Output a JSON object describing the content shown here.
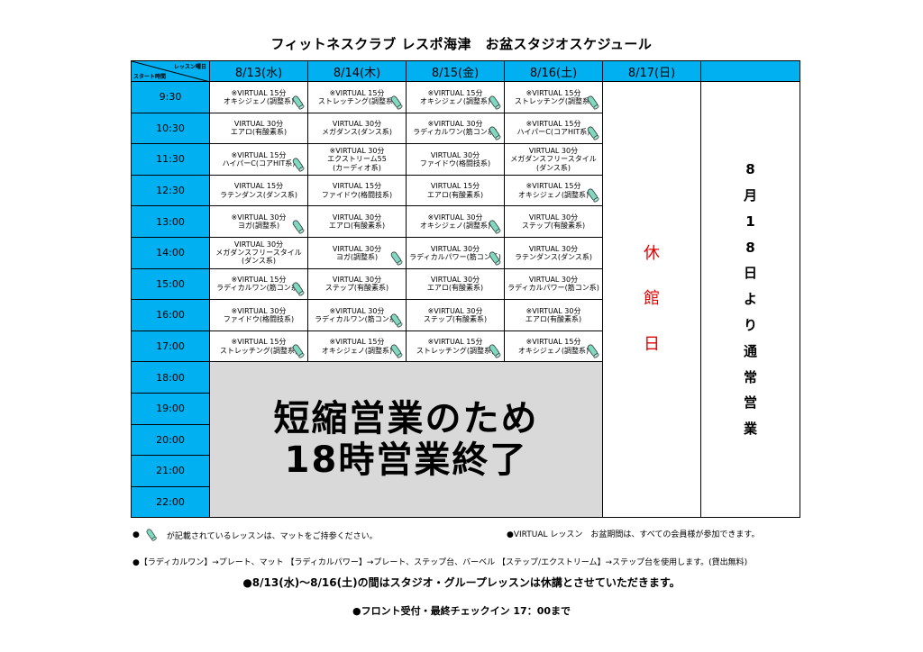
{
  "title": "フィットネスクラブ レスポ海津　お盆スタジオスケジュール",
  "corner": {
    "top_right": "レッスン曜日",
    "bottom_left": "スタート時間"
  },
  "days": [
    "8/13(水)",
    "8/14(木)",
    "8/15(金)",
    "8/16(土)",
    "8/17(日)"
  ],
  "times": [
    "9:30",
    "10:30",
    "11:30",
    "12:30",
    "13:00",
    "14:00",
    "15:00",
    "16:00",
    "17:00",
    "18:00",
    "19:00",
    "20:00",
    "21:00",
    "22:00"
  ],
  "lessons": [
    [
      {
        "l1": "※VIRTUAL 15分",
        "l2": "オキシジェノ(調整系)",
        "mat": true
      },
      {
        "l1": "※VIRTUAL 15分",
        "l2": "ストレッチング(調整系)",
        "mat": true
      },
      {
        "l1": "※VIRTUAL 15分",
        "l2": "オキシジェノ(調整系)",
        "mat": true
      },
      {
        "l1": "※VIRTUAL 15分",
        "l2": "ストレッチング(調整系)",
        "mat": true
      }
    ],
    [
      {
        "l1": "VIRTUAL 30分",
        "l2": "エアロ(有酸素系)",
        "mat": false
      },
      {
        "l1": "VIRTUAL 30分",
        "l2": "メガダンス(ダンス系)",
        "mat": false
      },
      {
        "l1": "※VIRTUAL 30分",
        "l2": "ラディカルワン(筋コン系)",
        "mat": true
      },
      {
        "l1": "※VIRTUAL 15分",
        "l2": "ハイパーC(コアHIT系)",
        "mat": true
      }
    ],
    [
      {
        "l1": "※VIRTUAL 15分",
        "l2": "ハイパーC(コアHIT系)",
        "mat": true
      },
      {
        "l1": "※VIRTUAL 30分",
        "l2": "エクストリーム55",
        "l3": "(カーディオ系)",
        "mat": false
      },
      {
        "l1": "VIRTUAL 30分",
        "l2": "ファイドウ(格闘技系)",
        "mat": false
      },
      {
        "l1": "VIRTUAL 30分",
        "l2": "メガダンスフリースタイル",
        "l3": "(ダンス系)",
        "mat": false
      }
    ],
    [
      {
        "l1": "VIRTUAL 15分",
        "l2": "ラテンダンス(ダンス系)",
        "mat": false
      },
      {
        "l1": "VIRTUAL 15分",
        "l2": "ファイドウ(格闘技系)",
        "mat": false
      },
      {
        "l1": "VIRTUAL 15分",
        "l2": "エアロ(有酸素系)",
        "mat": false
      },
      {
        "l1": "※VIRTUAL 15分",
        "l2": "オキシジェノ(調整系)",
        "mat": true
      }
    ],
    [
      {
        "l1": "※VIRTUAL 30分",
        "l2": "ヨガ(調整系)",
        "mat": true
      },
      {
        "l1": "VIRTUAL 30分",
        "l2": "エアロ(有酸素系)",
        "mat": false
      },
      {
        "l1": "※VIRTUAL 30分",
        "l2": "オキシジェノ(調整系)",
        "mat": true
      },
      {
        "l1": "VIRTUAL 30分",
        "l2": "ステップ(有酸素系)",
        "mat": false
      }
    ],
    [
      {
        "l1": "VIRTUAL 30分",
        "l2": "メガダンスフリースタイル",
        "l3": "(ダンス系)",
        "mat": false
      },
      {
        "l1": "VIRTUAL 30分",
        "l2": "ヨガ(調整系)",
        "mat": true
      },
      {
        "l1": "VIRTUAL 30分",
        "l2": "ラディカルパワー(筋コン系)",
        "mat": true
      },
      {
        "l1": "VIRTUAL 30分",
        "l2": "ラテンダンス(ダンス系)",
        "mat": false
      }
    ],
    [
      {
        "l1": "※VIRTUAL 15分",
        "l2": "ラディカルワン(筋コン系)",
        "mat": true
      },
      {
        "l1": "VIRTUAL 30分",
        "l2": "ステップ(有酸素系)",
        "mat": false
      },
      {
        "l1": "VIRTUAL 30分",
        "l2": "エアロ(有酸素系)",
        "mat": false
      },
      {
        "l1": "VIRTUAL 30分",
        "l2": "ラディカルパワー(筋コン系)",
        "mat": false
      }
    ],
    [
      {
        "l1": "※VIRTUAL 30分",
        "l2": "ファイドウ(格闘技系)",
        "mat": false
      },
      {
        "l1": "※VIRTUAL 30分",
        "l2": "ラディカルワン(筋コン系)",
        "mat": true
      },
      {
        "l1": "※VIRTUAL 30分",
        "l2": "ステップ(有酸素系)",
        "mat": false
      },
      {
        "l1": "※VIRTUAL 30分",
        "l2": "エアロ(有酸素系)",
        "mat": false
      }
    ],
    [
      {
        "l1": "※VIRTUAL 15分",
        "l2": "ストレッチング(調整系)",
        "mat": true
      },
      {
        "l1": "※VIRTUAL 15分",
        "l2": "オキシジェノ(調整系)",
        "mat": true
      },
      {
        "l1": "※VIRTUAL 15分",
        "l2": "ストレッチング(調整系)",
        "mat": true
      },
      {
        "l1": "※VIRTUAL 15分",
        "l2": "オキシジェノ(調整系)",
        "mat": true
      }
    ]
  ],
  "short_hours": {
    "line1": "短縮営業のため",
    "line2": "18時営業終了"
  },
  "closed_chars": [
    "休",
    "館",
    "日"
  ],
  "note_chars": [
    "8",
    "月",
    "1",
    "8",
    "日",
    "よ",
    "り",
    "通",
    "常",
    "営",
    "業"
  ],
  "legend": {
    "bullet": "●",
    "mat_note": "が記載されているレッスンは、マットをご持参ください。",
    "virtual_note": "●VIRTUAL レッスン　お盆期間は、すべての会員様が参加できます。",
    "equipment_note": "●【ラディカルワン】→プレート、マット 【ラディカルパワー】→プレート、ステップ台、バーベル 【ステップ/エクストリーム】→ステップ台を使用します。(貸出無料)",
    "closure_note": "●8/13(水)～8/16(土)の間はスタジオ・グループレッスンは休講とさせていただきます。",
    "front_note": "●フロント受付・最終チェックイン 17：00まで"
  },
  "colors": {
    "header": "#00b0f0",
    "gray_block": "#d9d9d9",
    "closed_text": "#e00000",
    "mat_icon": "#7fd8c0"
  }
}
